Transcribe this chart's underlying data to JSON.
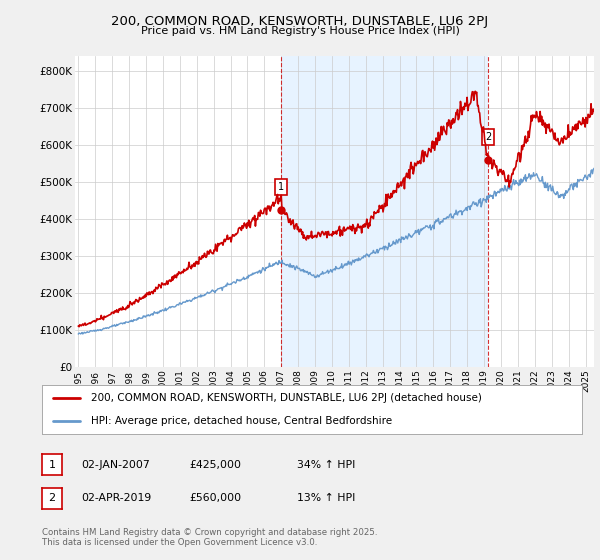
{
  "title": "200, COMMON ROAD, KENSWORTH, DUNSTABLE, LU6 2PJ",
  "subtitle": "Price paid vs. HM Land Registry's House Price Index (HPI)",
  "ylabel_ticks": [
    "£0",
    "£100K",
    "£200K",
    "£300K",
    "£400K",
    "£500K",
    "£600K",
    "£700K",
    "£800K"
  ],
  "ytick_values": [
    0,
    100000,
    200000,
    300000,
    400000,
    500000,
    600000,
    700000,
    800000
  ],
  "ylim": [
    0,
    840000
  ],
  "xlim_start": 1994.8,
  "xlim_end": 2025.5,
  "xticks": [
    1995,
    1996,
    1997,
    1998,
    1999,
    2000,
    2001,
    2002,
    2003,
    2004,
    2005,
    2006,
    2007,
    2008,
    2009,
    2010,
    2011,
    2012,
    2013,
    2014,
    2015,
    2016,
    2017,
    2018,
    2019,
    2020,
    2021,
    2022,
    2023,
    2024,
    2025
  ],
  "property_color": "#cc0000",
  "hpi_color": "#6699cc",
  "fill_color": "#ddeeff",
  "marker1_x": 2007.0,
  "marker1_y": 425000,
  "marker2_x": 2019.25,
  "marker2_y": 560000,
  "vline1_x": 2007.0,
  "vline2_x": 2019.25,
  "legend_property": "200, COMMON ROAD, KENSWORTH, DUNSTABLE, LU6 2PJ (detached house)",
  "legend_hpi": "HPI: Average price, detached house, Central Bedfordshire",
  "background_color": "#f0f0f0",
  "plot_background": "#ffffff",
  "footer": "Contains HM Land Registry data © Crown copyright and database right 2025.\nThis data is licensed under the Open Government Licence v3.0."
}
